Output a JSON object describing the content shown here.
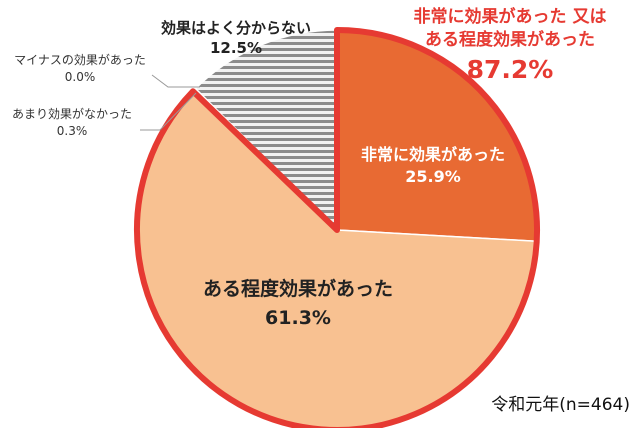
{
  "chart_data": {
    "type": "pie",
    "slices": [
      {
        "name": "非常に効果があった",
        "value": 25.9,
        "label": "25.9%",
        "color": "#e86a33"
      },
      {
        "name": "ある程度効果があった",
        "value": 61.3,
        "label": "61.3%",
        "color": "#f8c191"
      },
      {
        "name": "あまり効果がなかった",
        "value": 0.3,
        "label": "0.3%",
        "color": "#d9d9d9"
      },
      {
        "name": "マイナスの効果があった",
        "value": 0.0,
        "label": "0.0%",
        "color": "#d9d9d9"
      },
      {
        "name": "効果はよく分からない",
        "value": 12.5,
        "label": "12.5%",
        "color": "#c0c0c0"
      }
    ],
    "callout": {
      "line1": "非常に効果があった 又は",
      "line2": "ある程度効果があった",
      "value": "87.2%",
      "color": "#e63a32"
    },
    "footnote": "令和元年(n=464)"
  }
}
